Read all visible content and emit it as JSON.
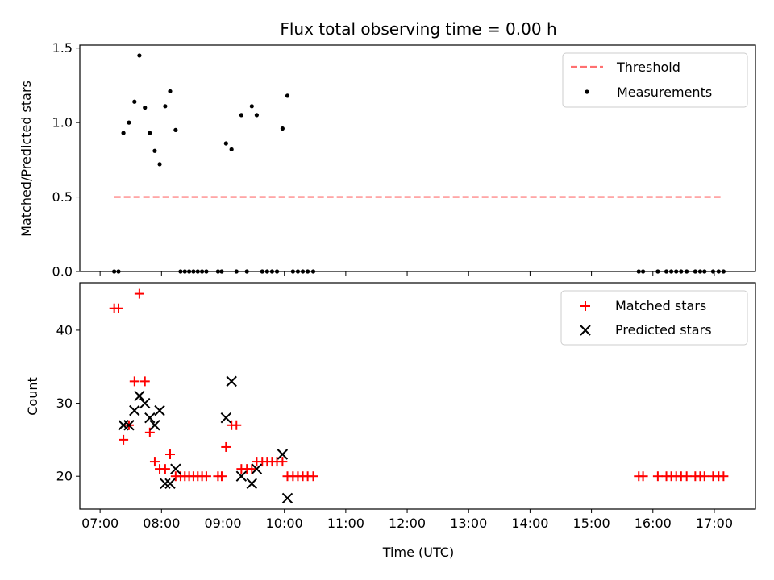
{
  "figure": {
    "title": "Flux total observing time = 0.00 h",
    "xlabel": "Time (UTC)",
    "x_tick_labels": [
      "07:00",
      "08:00",
      "09:00",
      "10:00",
      "11:00",
      "12:00",
      "13:00",
      "14:00",
      "15:00",
      "16:00",
      "17:00"
    ]
  },
  "chart_data": [
    {
      "type": "scatter",
      "title": "Flux total observing time = 0.00 h",
      "ylabel": "Matched/Predicted stars",
      "xlabel": "Time (UTC)",
      "x_unit": "hours UTC",
      "xlim": [
        6.67,
        17.67
      ],
      "ylim": [
        0,
        1.52
      ],
      "y_ticks": [
        0,
        0.5,
        1.0,
        1.5
      ],
      "y_tick_labels": [
        "0.0",
        "0.5",
        "1.0",
        "1.5"
      ],
      "legend": {
        "placement": "top-right",
        "entries": [
          "Threshold",
          "Measurements"
        ]
      },
      "threshold": {
        "name": "Threshold",
        "value": 0.5,
        "x_range": [
          7.23,
          17.12
        ],
        "color": "#ff7070",
        "style": "dashed"
      },
      "series": [
        {
          "name": "Measurements",
          "color": "#000000",
          "points": [
            [
              7.23,
              0
            ],
            [
              7.3,
              0
            ],
            [
              7.38,
              0.93
            ],
            [
              7.47,
              1.0
            ],
            [
              7.56,
              1.14
            ],
            [
              7.64,
              1.45
            ],
            [
              7.73,
              1.1
            ],
            [
              7.81,
              0.93
            ],
            [
              7.89,
              0.81
            ],
            [
              7.97,
              0.72
            ],
            [
              8.06,
              1.11
            ],
            [
              8.14,
              1.21
            ],
            [
              8.23,
              0.95
            ],
            [
              8.31,
              0
            ],
            [
              8.38,
              0
            ],
            [
              8.45,
              0
            ],
            [
              8.52,
              0
            ],
            [
              8.59,
              0
            ],
            [
              8.66,
              0
            ],
            [
              8.73,
              0
            ],
            [
              8.92,
              0
            ],
            [
              8.98,
              0
            ],
            [
              9.05,
              0.86
            ],
            [
              9.14,
              0.82
            ],
            [
              9.22,
              0
            ],
            [
              9.3,
              1.05
            ],
            [
              9.39,
              0
            ],
            [
              9.47,
              1.11
            ],
            [
              9.55,
              1.05
            ],
            [
              9.64,
              0
            ],
            [
              9.72,
              0
            ],
            [
              9.8,
              0
            ],
            [
              9.88,
              0
            ],
            [
              9.97,
              0.96
            ],
            [
              10.05,
              1.18
            ],
            [
              10.14,
              0
            ],
            [
              10.22,
              0
            ],
            [
              10.3,
              0
            ],
            [
              10.38,
              0
            ],
            [
              10.47,
              0
            ],
            [
              15.77,
              0
            ],
            [
              15.84,
              0
            ],
            [
              16.08,
              0
            ],
            [
              16.22,
              0
            ],
            [
              16.3,
              0
            ],
            [
              16.38,
              0
            ],
            [
              16.46,
              0
            ],
            [
              16.55,
              0
            ],
            [
              16.69,
              0
            ],
            [
              16.77,
              0
            ],
            [
              16.84,
              0
            ],
            [
              16.98,
              0
            ],
            [
              17.07,
              0
            ],
            [
              17.15,
              0
            ]
          ]
        }
      ]
    },
    {
      "type": "scatter",
      "ylabel": "Count",
      "xlabel": "Time (UTC)",
      "x_unit": "hours UTC",
      "xlim": [
        6.67,
        17.67
      ],
      "ylim": [
        15.5,
        46.5
      ],
      "y_ticks": [
        20,
        30,
        40
      ],
      "y_tick_labels": [
        "20",
        "30",
        "40"
      ],
      "legend": {
        "placement": "top-right",
        "entries": [
          "Matched stars",
          "Predicted stars"
        ]
      },
      "series": [
        {
          "name": "Matched stars",
          "marker": "plus",
          "color": "#ff0000",
          "points": [
            [
              7.23,
              43
            ],
            [
              7.3,
              43
            ],
            [
              7.38,
              25
            ],
            [
              7.47,
              27
            ],
            [
              7.56,
              33
            ],
            [
              7.64,
              45
            ],
            [
              7.73,
              33
            ],
            [
              7.81,
              26
            ],
            [
              7.89,
              22
            ],
            [
              7.97,
              21
            ],
            [
              8.06,
              21
            ],
            [
              8.14,
              23
            ],
            [
              8.23,
              20
            ],
            [
              8.31,
              20
            ],
            [
              8.38,
              20
            ],
            [
              8.45,
              20
            ],
            [
              8.52,
              20
            ],
            [
              8.59,
              20
            ],
            [
              8.66,
              20
            ],
            [
              8.73,
              20
            ],
            [
              8.92,
              20
            ],
            [
              8.98,
              20
            ],
            [
              9.05,
              24
            ],
            [
              9.14,
              27
            ],
            [
              9.22,
              27
            ],
            [
              9.3,
              21
            ],
            [
              9.39,
              21
            ],
            [
              9.47,
              21
            ],
            [
              9.55,
              22
            ],
            [
              9.64,
              22
            ],
            [
              9.72,
              22
            ],
            [
              9.8,
              22
            ],
            [
              9.88,
              22
            ],
            [
              9.97,
              22
            ],
            [
              10.05,
              20
            ],
            [
              10.14,
              20
            ],
            [
              10.22,
              20
            ],
            [
              10.3,
              20
            ],
            [
              10.38,
              20
            ],
            [
              10.47,
              20
            ],
            [
              15.77,
              20
            ],
            [
              15.84,
              20
            ],
            [
              16.08,
              20
            ],
            [
              16.22,
              20
            ],
            [
              16.3,
              20
            ],
            [
              16.38,
              20
            ],
            [
              16.46,
              20
            ],
            [
              16.55,
              20
            ],
            [
              16.69,
              20
            ],
            [
              16.77,
              20
            ],
            [
              16.84,
              20
            ],
            [
              16.98,
              20
            ],
            [
              17.07,
              20
            ],
            [
              17.15,
              20
            ]
          ]
        },
        {
          "name": "Predicted stars",
          "marker": "x",
          "color": "#000000",
          "points": [
            [
              7.38,
              27
            ],
            [
              7.47,
              27
            ],
            [
              7.56,
              29
            ],
            [
              7.64,
              31
            ],
            [
              7.73,
              30
            ],
            [
              7.81,
              28
            ],
            [
              7.89,
              27
            ],
            [
              7.97,
              29
            ],
            [
              8.06,
              19
            ],
            [
              8.14,
              19
            ],
            [
              8.23,
              21
            ],
            [
              9.05,
              28
            ],
            [
              9.14,
              33
            ],
            [
              9.3,
              20
            ],
            [
              9.47,
              19
            ],
            [
              9.55,
              21
            ],
            [
              9.97,
              23
            ],
            [
              10.05,
              17
            ]
          ]
        }
      ]
    }
  ]
}
